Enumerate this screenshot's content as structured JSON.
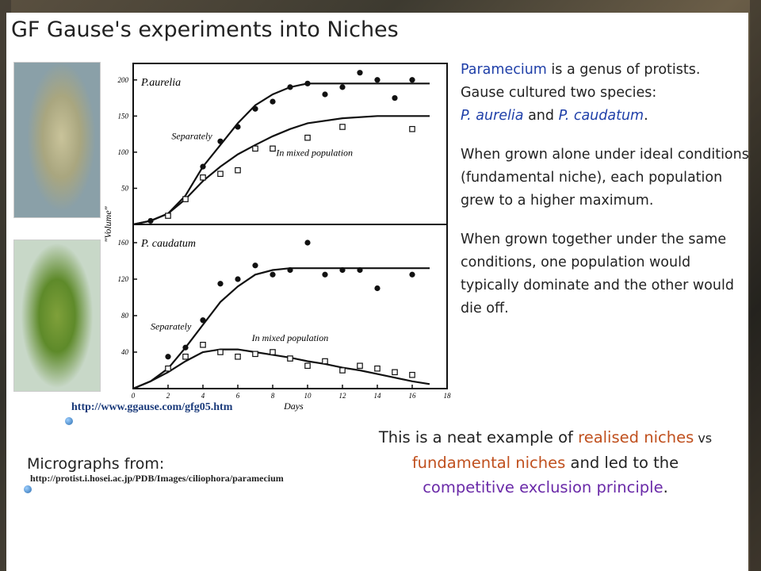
{
  "title": "GF Gause's experiments into Niches",
  "side_text": {
    "p1_genus": "Paramecium",
    "p1_rest": " is a genus of protists.",
    "p1_line2": "Gause cultured two species:",
    "sp1": "P. aurelia",
    "and": " and ",
    "sp2": "P. caudatum",
    "dot": ".",
    "p2": "When grown alone under ideal conditions (fundamental niche), each population grew to a higher maximum.",
    "p3": "When grown together under the same conditions, one population would typically dominate and the other would die off."
  },
  "conclusion": {
    "t1": "This is a neat example of ",
    "realised": "realised niches",
    "vs": " vs",
    "fundamental": "fundamental niches",
    "t2": " and led to the",
    "principle": "competitive exclusion principle",
    "t3": "."
  },
  "links": {
    "ggause": "http://www.ggause.com/gfg05.htm",
    "micrographs_label": "Micrographs from:",
    "protist": "http://protist.i.hosei.ac.jp/PDB/Images/ciliophora/paramecium"
  },
  "colors": {
    "blue": "#1f3fa8",
    "orange": "#c0501e",
    "purple": "#6a2aa8"
  },
  "chart_data": [
    {
      "type": "scatter",
      "title": "P.aurelia",
      "xlabel": "Days",
      "ylabel": "\"Volume\"",
      "xlim": [
        0,
        18
      ],
      "ylim": [
        0,
        225
      ],
      "yticks": [
        50,
        100,
        150,
        200
      ],
      "curve_labels": {
        "separately": "Separately",
        "mixed": "In mixed population"
      },
      "series": [
        {
          "name": "Separately",
          "marker": "filled-circle",
          "x": [
            1,
            2,
            3,
            4,
            5,
            6,
            7,
            8,
            9,
            10,
            11,
            12,
            13,
            14,
            15,
            16
          ],
          "y": [
            5,
            12,
            35,
            80,
            115,
            135,
            160,
            170,
            190,
            195,
            180,
            190,
            210,
            200,
            175,
            200
          ]
        },
        {
          "name": "In mixed population",
          "marker": "open-square",
          "x": [
            2,
            3,
            4,
            5,
            6,
            7,
            8,
            10,
            12,
            16
          ],
          "y": [
            12,
            35,
            65,
            70,
            75,
            105,
            105,
            120,
            135,
            132
          ]
        }
      ],
      "fit_curves": [
        {
          "name": "Separately",
          "x": [
            0,
            1,
            2,
            3,
            4,
            5,
            6,
            7,
            8,
            9,
            10,
            12,
            14,
            16,
            17
          ],
          "y": [
            0,
            5,
            15,
            40,
            80,
            110,
            140,
            165,
            180,
            190,
            195,
            195,
            195,
            195,
            195
          ]
        },
        {
          "name": "In mixed population",
          "x": [
            0,
            1,
            2,
            3,
            4,
            5,
            6,
            7,
            8,
            9,
            10,
            12,
            14,
            16,
            17
          ],
          "y": [
            0,
            5,
            15,
            35,
            60,
            80,
            97,
            110,
            122,
            132,
            140,
            147,
            150,
            150,
            150
          ]
        }
      ]
    },
    {
      "type": "scatter",
      "title": "P. caudatum",
      "xlabel": "Days",
      "ylabel": "\"Volume\"",
      "xlim": [
        0,
        18
      ],
      "ylim": [
        0,
        180
      ],
      "yticks": [
        40,
        80,
        120,
        160
      ],
      "xticks": [
        0,
        2,
        4,
        6,
        8,
        10,
        12,
        14,
        16,
        18
      ],
      "curve_labels": {
        "separately": "Separately",
        "mixed": "In mixed population"
      },
      "series": [
        {
          "name": "Separately",
          "marker": "filled-circle",
          "x": [
            2,
            3,
            4,
            5,
            6,
            7,
            8,
            9,
            10,
            11,
            12,
            13,
            14,
            16
          ],
          "y": [
            35,
            45,
            75,
            115,
            120,
            135,
            125,
            130,
            160,
            125,
            130,
            130,
            110,
            125
          ]
        },
        {
          "name": "In mixed population",
          "marker": "open-square",
          "x": [
            2,
            3,
            4,
            5,
            6,
            7,
            8,
            9,
            10,
            11,
            12,
            13,
            14,
            15,
            16
          ],
          "y": [
            22,
            35,
            48,
            40,
            35,
            38,
            40,
            33,
            25,
            30,
            20,
            25,
            22,
            18,
            15
          ]
        }
      ],
      "fit_curves": [
        {
          "name": "Separately",
          "x": [
            0,
            1,
            2,
            3,
            4,
            5,
            6,
            7,
            8,
            9,
            10,
            12,
            14,
            16,
            17
          ],
          "y": [
            0,
            8,
            22,
            45,
            70,
            95,
            112,
            125,
            130,
            132,
            132,
            132,
            132,
            132,
            132
          ]
        },
        {
          "name": "In mixed population",
          "x": [
            0,
            1,
            2,
            3,
            4,
            5,
            6,
            7,
            8,
            9,
            10,
            11,
            12,
            13,
            14,
            15,
            16,
            17
          ],
          "y": [
            0,
            8,
            18,
            30,
            40,
            43,
            43,
            40,
            37,
            34,
            30,
            27,
            23,
            20,
            16,
            12,
            8,
            5
          ]
        }
      ]
    }
  ]
}
